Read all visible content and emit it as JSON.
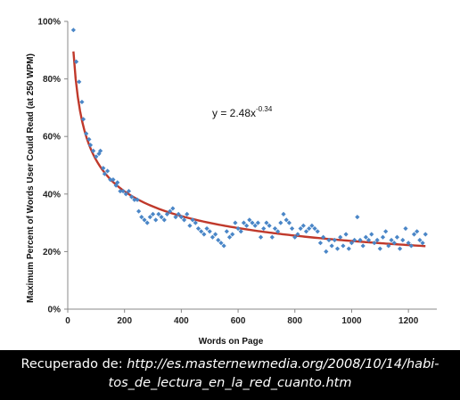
{
  "chart_data": {
    "type": "scatter",
    "xlabel": "Words on Page",
    "ylabel": "Maximum Percent of Words User Could Read (at 250 WPM)",
    "xlim": [
      0,
      1300
    ],
    "ylim": [
      0,
      100
    ],
    "x_ticks": [
      "0",
      "200",
      "400",
      "600",
      "800",
      "1000",
      "1200"
    ],
    "y_ticks": [
      "0%",
      "20%",
      "40%",
      "60%",
      "80%",
      "100%"
    ],
    "grid": false,
    "series": [
      {
        "marker": "diamond",
        "color": "#4a86c7",
        "points": [
          [
            20,
            97
          ],
          [
            30,
            86
          ],
          [
            40,
            79
          ],
          [
            50,
            72
          ],
          [
            55,
            66
          ],
          [
            65,
            61
          ],
          [
            75,
            59
          ],
          [
            80,
            57
          ],
          [
            90,
            55
          ],
          [
            100,
            53
          ],
          [
            110,
            54
          ],
          [
            115,
            55
          ],
          [
            125,
            49
          ],
          [
            130,
            47
          ],
          [
            140,
            48
          ],
          [
            150,
            45
          ],
          [
            160,
            45
          ],
          [
            170,
            43
          ],
          [
            175,
            44
          ],
          [
            185,
            41
          ],
          [
            195,
            41
          ],
          [
            205,
            40
          ],
          [
            215,
            41
          ],
          [
            225,
            39
          ],
          [
            235,
            38
          ],
          [
            245,
            38
          ],
          [
            250,
            34
          ],
          [
            260,
            32
          ],
          [
            270,
            31
          ],
          [
            280,
            30
          ],
          [
            290,
            32
          ],
          [
            300,
            33
          ],
          [
            310,
            31
          ],
          [
            320,
            33
          ],
          [
            330,
            32
          ],
          [
            340,
            31
          ],
          [
            350,
            33
          ],
          [
            360,
            34
          ],
          [
            370,
            35
          ],
          [
            380,
            32
          ],
          [
            390,
            33
          ],
          [
            400,
            32
          ],
          [
            410,
            31
          ],
          [
            420,
            33
          ],
          [
            430,
            29
          ],
          [
            440,
            31
          ],
          [
            450,
            30
          ],
          [
            460,
            28
          ],
          [
            470,
            27
          ],
          [
            480,
            26
          ],
          [
            490,
            28
          ],
          [
            500,
            27
          ],
          [
            510,
            25
          ],
          [
            520,
            26
          ],
          [
            530,
            24
          ],
          [
            540,
            23
          ],
          [
            550,
            22
          ],
          [
            560,
            27
          ],
          [
            570,
            25
          ],
          [
            580,
            26
          ],
          [
            590,
            30
          ],
          [
            600,
            28
          ],
          [
            610,
            27
          ],
          [
            620,
            30
          ],
          [
            630,
            29
          ],
          [
            640,
            31
          ],
          [
            650,
            30
          ],
          [
            660,
            29
          ],
          [
            670,
            30
          ],
          [
            680,
            25
          ],
          [
            690,
            28
          ],
          [
            700,
            30
          ],
          [
            710,
            29
          ],
          [
            720,
            25
          ],
          [
            730,
            28
          ],
          [
            740,
            27
          ],
          [
            750,
            30
          ],
          [
            760,
            33
          ],
          [
            770,
            31
          ],
          [
            780,
            30
          ],
          [
            790,
            28
          ],
          [
            800,
            25
          ],
          [
            810,
            26
          ],
          [
            820,
            28
          ],
          [
            830,
            29
          ],
          [
            840,
            27
          ],
          [
            850,
            28
          ],
          [
            860,
            29
          ],
          [
            870,
            28
          ],
          [
            880,
            27
          ],
          [
            890,
            23
          ],
          [
            900,
            25
          ],
          [
            910,
            20
          ],
          [
            920,
            24
          ],
          [
            930,
            22
          ],
          [
            940,
            24
          ],
          [
            950,
            21
          ],
          [
            960,
            25
          ],
          [
            970,
            22
          ],
          [
            980,
            26
          ],
          [
            990,
            21
          ],
          [
            1000,
            23
          ],
          [
            1010,
            24
          ],
          [
            1020,
            32
          ],
          [
            1030,
            24
          ],
          [
            1040,
            22
          ],
          [
            1050,
            25
          ],
          [
            1060,
            24
          ],
          [
            1070,
            26
          ],
          [
            1080,
            23
          ],
          [
            1090,
            24
          ],
          [
            1100,
            21
          ],
          [
            1110,
            25
          ],
          [
            1120,
            27
          ],
          [
            1130,
            22
          ],
          [
            1140,
            24
          ],
          [
            1150,
            23
          ],
          [
            1160,
            25
          ],
          [
            1170,
            21
          ],
          [
            1180,
            24
          ],
          [
            1190,
            28
          ],
          [
            1200,
            23
          ],
          [
            1210,
            22
          ],
          [
            1220,
            26
          ],
          [
            1230,
            27
          ],
          [
            1240,
            24
          ],
          [
            1250,
            23
          ],
          [
            1260,
            26
          ]
        ]
      }
    ],
    "trendline": {
      "type": "power",
      "coefficient": 2.48,
      "exponent": -0.34,
      "x_range": [
        20,
        1260
      ],
      "color": "#c0392b",
      "label_base": "y = 2.48x",
      "label_exponent": "-0.34"
    }
  },
  "caption": {
    "prefix": "Recuperado de: ",
    "url_line1": "http://es.masternewmedia.org/2008/10/14/habi-",
    "url_line2": "tos_de_lectura_en_la_red_cuanto.htm"
  }
}
